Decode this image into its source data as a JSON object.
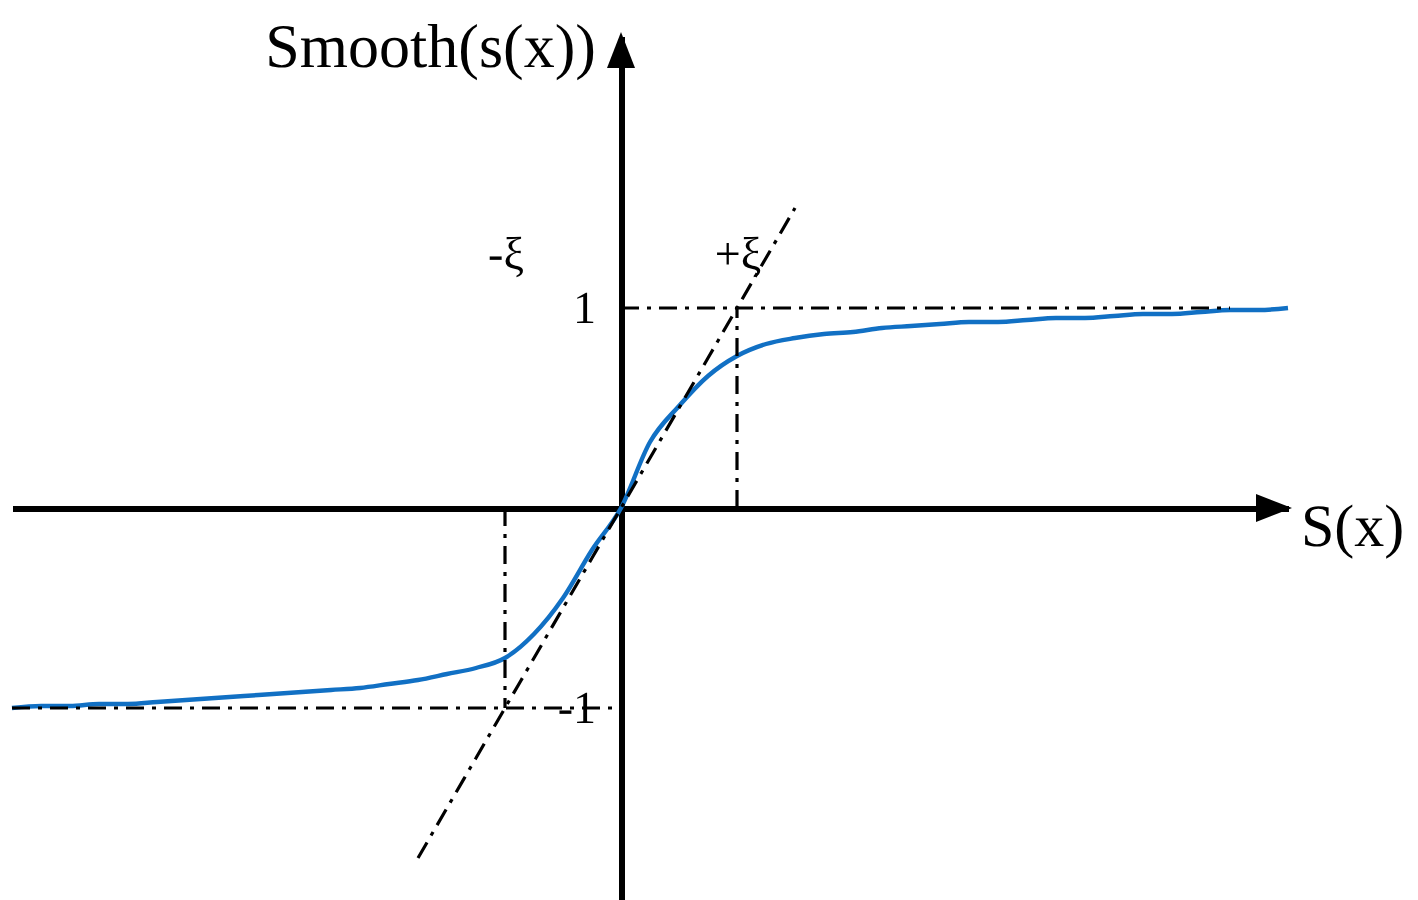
{
  "chart_data": {
    "type": "line",
    "xlabel": "S(x)",
    "ylabel": "Smooth(s(x))",
    "ylim": [
      -1.96,
      2.36
    ],
    "yticks": [
      -1,
      1
    ],
    "line_style": "solid",
    "categories": [
      null,
      null,
      null,
      null,
      null,
      null,
      null,
      null,
      null,
      null,
      null,
      null,
      null,
      null,
      null,
      null,
      null,
      "-ξ",
      null,
      null,
      null,
      null,
      null,
      null,
      null,
      "+ξ",
      null,
      null,
      null,
      null,
      null,
      null,
      null,
      null,
      null,
      null,
      null,
      null,
      null,
      null,
      null,
      null,
      null,
      null,
      null
    ],
    "series": [
      {
        "color": "#1170c4",
        "values": [
          -1.0,
          -0.99,
          -0.99,
          -0.98,
          -0.98,
          -0.97,
          -0.96,
          -0.95,
          -0.94,
          -0.93,
          -0.92,
          -0.91,
          -0.9,
          -0.88,
          -0.86,
          -0.83,
          -0.8,
          -0.75,
          -0.63,
          -0.45,
          -0.21,
          0,
          0.33,
          0.51,
          0.66,
          0.76,
          0.82,
          0.85,
          0.87,
          0.88,
          0.9,
          0.91,
          0.92,
          0.93,
          0.93,
          0.94,
          0.95,
          0.95,
          0.96,
          0.97,
          0.97,
          0.98,
          0.99,
          0.99,
          1.0
        ]
      },
      {
        "color": "#000000",
        "line_style": "dashed",
        "values": [
          null,
          null,
          null,
          null,
          null,
          null,
          null,
          null,
          null,
          null,
          null,
          null,
          null,
          null,
          -1.75,
          -1.5,
          -1.25,
          -1.0,
          -0.75,
          -0.5,
          -0.25,
          0,
          0.25,
          0.5,
          0.75,
          1.0,
          1.25,
          1.5,
          null,
          null,
          null,
          null,
          null,
          null,
          null,
          null,
          null,
          null,
          null,
          null,
          null,
          null,
          null,
          null,
          null
        ]
      },
      {
        "color": "#000000",
        "line_style": "dashed",
        "values": [
          null,
          null,
          null,
          null,
          null,
          null,
          null,
          null,
          null,
          null,
          null,
          null,
          null,
          null,
          null,
          null,
          null,
          null,
          null,
          null,
          null,
          1,
          1,
          1,
          1,
          1,
          1,
          1,
          1,
          1,
          1,
          1,
          1,
          1,
          1,
          1,
          1,
          1,
          1,
          1,
          1,
          1,
          1,
          null,
          null
        ]
      },
      {
        "color": "#000000",
        "line_style": "dashed",
        "values": [
          -1,
          -1,
          -1,
          -1,
          -1,
          -1,
          -1,
          -1,
          -1,
          -1,
          -1,
          -1,
          -1,
          -1,
          -1,
          -1,
          -1,
          -1,
          -1,
          -1,
          -1,
          -1,
          null,
          null,
          null,
          null,
          null,
          null,
          null,
          null,
          null,
          null,
          null,
          null,
          null,
          null,
          null,
          null,
          null,
          null,
          null,
          null,
          null,
          null,
          null
        ]
      },
      {
        "color": "#000000",
        "line_style": "dashed",
        "x": [
          "+ξ",
          "+ξ"
        ],
        "values": [
          0,
          1
        ]
      },
      {
        "color": "#000000",
        "line_style": "dashed",
        "x": [
          "-ξ",
          "-ξ"
        ],
        "values": [
          0,
          -1
        ]
      }
    ]
  }
}
